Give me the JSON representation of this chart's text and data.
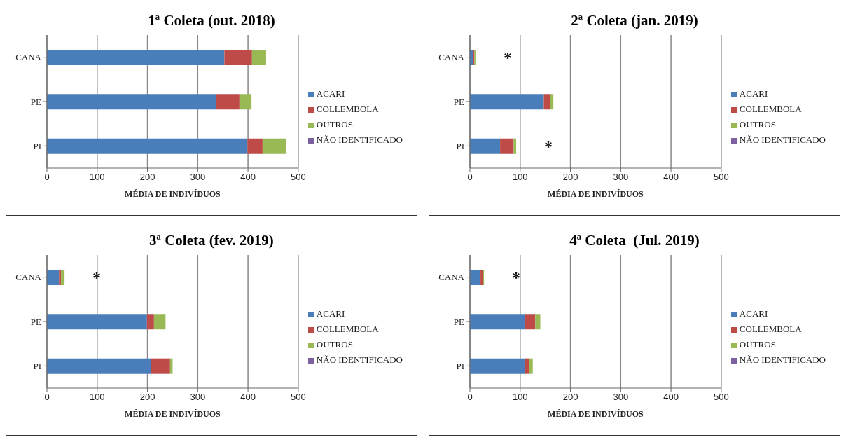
{
  "chart_data": [
    {
      "type": "bar",
      "title": "1ª Coleta (out. 2018)",
      "xlabel": "MÉDIA DE INDIVÍDUOS",
      "orientation": "horizontal",
      "stacked": true,
      "categories": [
        "CANA",
        "PE",
        "PI"
      ],
      "xlim": [
        0,
        500
      ],
      "xticks": [
        0,
        100,
        200,
        300,
        400,
        500
      ],
      "grid": "x",
      "legend": "right",
      "series": [
        {
          "name": "ACARI",
          "color": "#4a7ebb",
          "values": [
            353,
            337,
            399
          ]
        },
        {
          "name": "COLLEMBOLA",
          "color": "#be4b48",
          "values": [
            55,
            46,
            30
          ]
        },
        {
          "name": "OUTROS",
          "color": "#98b954",
          "values": [
            28,
            24,
            47
          ]
        },
        {
          "name": "NÃO IDENTIFICADO",
          "color": "#7d60a0",
          "values": [
            0,
            0,
            0
          ]
        }
      ]
    },
    {
      "type": "bar",
      "title": "2ª Coleta (jan. 2019)",
      "xlabel": "MÉDIA DE INDIVÍDUOS",
      "orientation": "horizontal",
      "stacked": true,
      "categories": [
        "CANA",
        "PE",
        "PI"
      ],
      "xlim": [
        0,
        500
      ],
      "xticks": [
        0,
        100,
        200,
        300,
        400,
        500
      ],
      "grid": "x",
      "legend": "right",
      "series": [
        {
          "name": "ACARI",
          "color": "#4a7ebb",
          "values": [
            6,
            147,
            60
          ]
        },
        {
          "name": "COLLEMBOLA",
          "color": "#be4b48",
          "values": [
            3,
            12,
            27
          ]
        },
        {
          "name": "OUTROS",
          "color": "#98b954",
          "values": [
            2,
            7,
            5
          ]
        },
        {
          "name": "NÃO IDENTIFICADO",
          "color": "#7d60a0",
          "values": [
            0,
            0,
            0
          ]
        }
      ],
      "annotations": [
        {
          "text": "*",
          "x": 11,
          "y": "CANA"
        },
        {
          "text": "*",
          "x": 92,
          "y": "PI"
        }
      ]
    },
    {
      "type": "bar",
      "title": "3ª Coleta (fev. 2019)",
      "xlabel": "MÉDIA DE INDIVÍDUOS",
      "orientation": "horizontal",
      "stacked": true,
      "categories": [
        "CANA",
        "PE",
        "PI"
      ],
      "xlim": [
        0,
        500
      ],
      "xticks": [
        0,
        100,
        200,
        300,
        400,
        500
      ],
      "grid": "x",
      "legend": "right",
      "series": [
        {
          "name": "ACARI",
          "color": "#4a7ebb",
          "values": [
            24,
            199,
            207
          ]
        },
        {
          "name": "COLLEMBOLA",
          "color": "#be4b48",
          "values": [
            4,
            14,
            38
          ]
        },
        {
          "name": "OUTROS",
          "color": "#98b954",
          "values": [
            7,
            23,
            5
          ]
        },
        {
          "name": "NÃO IDENTIFICADO",
          "color": "#7d60a0",
          "values": [
            0,
            0,
            0
          ]
        }
      ],
      "annotations": [
        {
          "text": "*",
          "x": 35,
          "y": "CANA"
        }
      ]
    },
    {
      "type": "bar",
      "title": "4ª Coleta  (Jul. 2019)",
      "xlabel": "MÉDIA DE INDIVÍDUOS",
      "orientation": "horizontal",
      "stacked": true,
      "categories": [
        "CANA",
        "PE",
        "PI"
      ],
      "xlim": [
        0,
        500
      ],
      "xticks": [
        0,
        100,
        200,
        300,
        400,
        500
      ],
      "grid": "x",
      "legend": "right",
      "series": [
        {
          "name": "ACARI",
          "color": "#4a7ebb",
          "values": [
            21,
            110,
            110
          ]
        },
        {
          "name": "COLLEMBOLA",
          "color": "#be4b48",
          "values": [
            5,
            20,
            8
          ]
        },
        {
          "name": "OUTROS",
          "color": "#98b954",
          "values": [
            2,
            10,
            7
          ]
        },
        {
          "name": "NÃO IDENTIFICADO",
          "color": "#7d60a0",
          "values": [
            0,
            0,
            0
          ]
        }
      ],
      "annotations": [
        {
          "text": "*",
          "x": 28,
          "y": "CANA"
        }
      ]
    }
  ]
}
